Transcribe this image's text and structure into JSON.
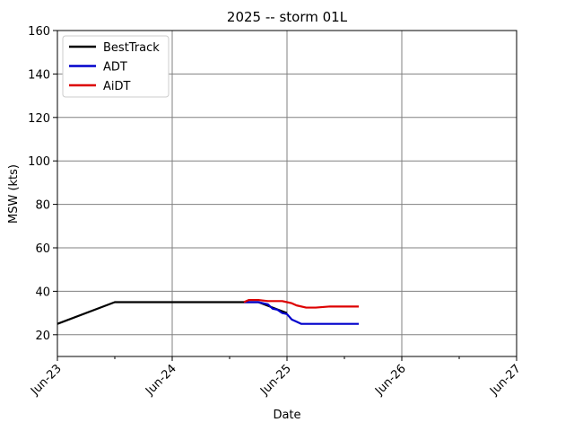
{
  "chart_data": {
    "type": "line",
    "title": "2025 -- storm 01L",
    "xlabel": "Date",
    "ylabel": "MSW (kts)",
    "xlim": [
      "2025-06-23T00:00",
      "2025-06-27T00:00"
    ],
    "ylim": [
      10,
      160
    ],
    "x_ticks": [
      "2025-06-23T00:00",
      "2025-06-24T00:00",
      "2025-06-25T00:00",
      "2025-06-26T00:00",
      "2025-06-27T00:00"
    ],
    "x_tick_labels": [
      "Jun-23",
      "Jun-24",
      "Jun-25",
      "Jun-26",
      "Jun-27"
    ],
    "x_minor_ticks": [
      "2025-06-23T12:00",
      "2025-06-24T12:00",
      "2025-06-25T12:00",
      "2025-06-26T12:00"
    ],
    "y_ticks": [
      20,
      40,
      60,
      80,
      100,
      120,
      140,
      160
    ],
    "grid": true,
    "legend_position": "top-left",
    "series": [
      {
        "name": "BestTrack",
        "color": "#000000",
        "points": [
          [
            "2025-06-23T00:00",
            25
          ],
          [
            "2025-06-23T12:00",
            35
          ],
          [
            "2025-06-24T00:00",
            35
          ],
          [
            "2025-06-24T12:00",
            35
          ],
          [
            "2025-06-24T18:00",
            35
          ],
          [
            "2025-06-25T00:00",
            30
          ]
        ]
      },
      {
        "name": "ADT",
        "color": "#0000cc",
        "points": [
          [
            "2025-06-24T15:00",
            35
          ],
          [
            "2025-06-24T18:00",
            35
          ],
          [
            "2025-06-24T20:00",
            34
          ],
          [
            "2025-06-24T21:00",
            32
          ],
          [
            "2025-06-24T22:00",
            31.5
          ],
          [
            "2025-06-24T23:00",
            30
          ],
          [
            "2025-06-25T00:00",
            29.5
          ],
          [
            "2025-06-25T01:00",
            27
          ],
          [
            "2025-06-25T02:00",
            26
          ],
          [
            "2025-06-25T03:00",
            25
          ],
          [
            "2025-06-25T06:00",
            25
          ],
          [
            "2025-06-25T09:00",
            25
          ],
          [
            "2025-06-25T12:00",
            25
          ],
          [
            "2025-06-25T15:00",
            25
          ]
        ]
      },
      {
        "name": "AiDT",
        "color": "#dd0000",
        "points": [
          [
            "2025-06-24T15:00",
            35
          ],
          [
            "2025-06-24T16:00",
            36
          ],
          [
            "2025-06-24T18:00",
            36
          ],
          [
            "2025-06-24T20:00",
            35.5
          ],
          [
            "2025-06-24T22:00",
            35.5
          ],
          [
            "2025-06-24T23:00",
            35.5
          ],
          [
            "2025-06-25T00:00",
            35
          ],
          [
            "2025-06-25T01:00",
            34.5
          ],
          [
            "2025-06-25T02:00",
            33.5
          ],
          [
            "2025-06-25T04:00",
            32.5
          ],
          [
            "2025-06-25T06:00",
            32.5
          ],
          [
            "2025-06-25T09:00",
            33
          ],
          [
            "2025-06-25T12:00",
            33
          ],
          [
            "2025-06-25T15:00",
            33
          ]
        ]
      }
    ]
  }
}
